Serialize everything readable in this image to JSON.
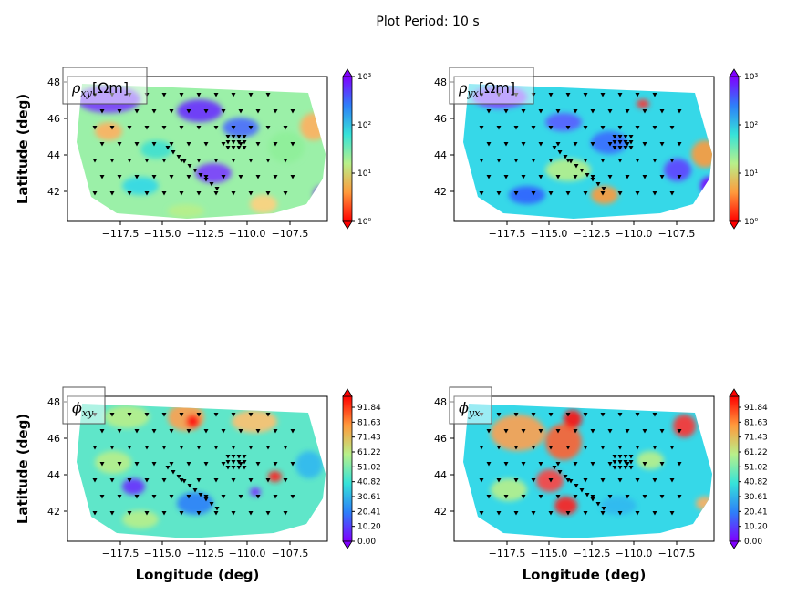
{
  "suptitle": "Plot Period: 10 s",
  "chart_data": [
    {
      "type": "heatmap",
      "panel": "rho_xy",
      "label_main": "ρ",
      "label_sub": "xy",
      "label_unit": "[Ωm]",
      "xticks": [
        "−117.5",
        "−115.0",
        "−112.5",
        "−110.0",
        "−107.5"
      ],
      "yticks": [
        "48",
        "46",
        "44",
        "42"
      ],
      "xlabel": "",
      "ylabel": "Latitude (deg)",
      "xlim": [
        -119.2,
        -106.0
      ],
      "ylim": [
        40.2,
        48.3
      ],
      "colorbar": {
        "scale": "log",
        "ticks": [
          "10³",
          "10²",
          "10¹",
          "10⁰"
        ],
        "range": [
          1,
          1000
        ]
      }
    },
    {
      "type": "heatmap",
      "panel": "rho_yx",
      "label_main": "ρ",
      "label_sub": "yx",
      "label_unit": "[Ωm]",
      "xticks": [
        "−117.5",
        "−115.0",
        "−112.5",
        "−110.0",
        "−107.5"
      ],
      "yticks": [
        "48",
        "46",
        "44",
        "42"
      ],
      "xlabel": "",
      "ylabel": "",
      "xlim": [
        -119.2,
        -106.0
      ],
      "ylim": [
        40.2,
        48.3
      ],
      "colorbar": {
        "scale": "log",
        "ticks": [
          "10³",
          "10²",
          "10¹",
          "10⁰"
        ],
        "range": [
          1,
          1000
        ]
      }
    },
    {
      "type": "heatmap",
      "panel": "phi_xy",
      "label_main": "ϕ",
      "label_sub": "xy",
      "label_unit": "",
      "xticks": [
        "−117.5",
        "−115.0",
        "−112.5",
        "−110.0",
        "−107.5"
      ],
      "yticks": [
        "48",
        "46",
        "44",
        "42"
      ],
      "xlabel": "Longitude (deg)",
      "ylabel": "Latitude (deg)",
      "xlim": [
        -119.2,
        -106.0
      ],
      "ylim": [
        40.2,
        48.3
      ],
      "colorbar": {
        "scale": "linear",
        "ticks": [
          "91.84",
          "81.63",
          "71.43",
          "61.22",
          "51.02",
          "40.82",
          "30.61",
          "20.41",
          "10.20",
          "0.00"
        ],
        "range": [
          0,
          100
        ]
      }
    },
    {
      "type": "heatmap",
      "panel": "phi_yx",
      "label_main": "ϕ",
      "label_sub": "yx",
      "label_unit": "",
      "xticks": [
        "−117.5",
        "−115.0",
        "−112.5",
        "−110.0",
        "−107.5"
      ],
      "yticks": [
        "48",
        "46",
        "44",
        "42"
      ],
      "xlabel": "Longitude (deg)",
      "ylabel": "",
      "xlim": [
        -119.2,
        -106.0
      ],
      "ylim": [
        40.2,
        48.3
      ],
      "colorbar": {
        "scale": "linear",
        "ticks": [
          "91.84",
          "81.63",
          "71.43",
          "61.22",
          "51.02",
          "40.82",
          "30.61",
          "20.41",
          "10.20",
          "0.00"
        ],
        "range": [
          0,
          100
        ]
      }
    }
  ]
}
